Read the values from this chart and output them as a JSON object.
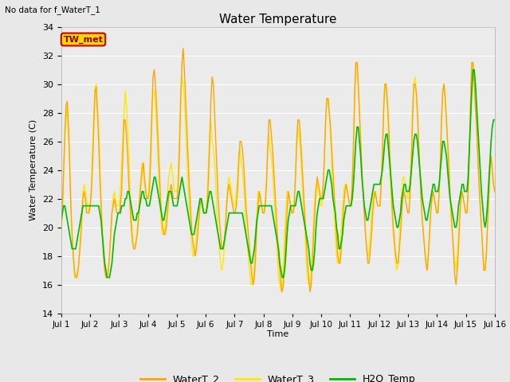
{
  "title": "Water Temperature",
  "xlabel": "Time",
  "ylabel": "Water Temperature (C)",
  "ylim": [
    14,
    34
  ],
  "yticks": [
    14,
    16,
    18,
    20,
    22,
    24,
    26,
    28,
    30,
    32,
    34
  ],
  "bg_color": "#e8e8e8",
  "plot_bg_color": "#ebebeb",
  "annotation_text": "No data for f_WaterT_1",
  "legend_label1": "WaterT_2",
  "legend_label2": "WaterT_3",
  "legend_label3": "H2O_Temp",
  "color_WaterT2": "#FFA500",
  "color_WaterT3": "#FFE800",
  "color_H2O": "#00BB00",
  "tw_met_label": "TW_met",
  "tw_met_bg": "#FFD700",
  "tw_met_border": "#CC0000",
  "WaterT_2": [
    19.8,
    21.5,
    24.0,
    26.5,
    28.5,
    28.8,
    27.0,
    24.5,
    21.5,
    19.5,
    18.0,
    17.0,
    16.5,
    16.5,
    17.0,
    18.0,
    19.0,
    20.5,
    22.0,
    22.5,
    22.0,
    21.0,
    21.0,
    21.0,
    21.5,
    22.5,
    24.5,
    27.0,
    29.5,
    29.8,
    28.0,
    26.0,
    23.5,
    21.5,
    19.5,
    18.0,
    17.0,
    16.5,
    16.5,
    17.0,
    18.0,
    19.5,
    21.0,
    21.5,
    22.0,
    21.5,
    21.0,
    21.0,
    21.0,
    21.5,
    22.5,
    25.0,
    27.5,
    27.5,
    26.5,
    25.0,
    23.0,
    21.5,
    20.0,
    19.0,
    18.5,
    18.5,
    19.0,
    19.5,
    20.5,
    22.0,
    23.0,
    24.0,
    24.5,
    23.5,
    22.5,
    22.0,
    22.0,
    22.5,
    24.5,
    27.5,
    30.5,
    31.0,
    30.0,
    28.5,
    26.5,
    24.5,
    22.5,
    21.0,
    20.0,
    19.5,
    19.5,
    20.0,
    21.0,
    22.0,
    22.5,
    23.0,
    22.5,
    22.0,
    22.0,
    22.0,
    22.0,
    23.0,
    25.5,
    29.0,
    31.5,
    32.5,
    31.0,
    29.0,
    27.0,
    25.0,
    23.0,
    21.5,
    20.0,
    19.0,
    18.5,
    18.0,
    18.5,
    19.5,
    20.5,
    21.5,
    22.0,
    21.5,
    21.0,
    21.0,
    21.0,
    21.5,
    23.5,
    26.0,
    29.0,
    30.5,
    30.0,
    28.0,
    26.0,
    24.0,
    22.0,
    20.5,
    19.5,
    18.5,
    18.5,
    19.0,
    20.0,
    21.5,
    22.5,
    23.0,
    22.5,
    22.0,
    21.5,
    21.0,
    21.0,
    21.5,
    22.5,
    24.5,
    26.0,
    26.0,
    25.5,
    24.5,
    23.0,
    21.5,
    20.5,
    19.5,
    18.5,
    17.5,
    16.5,
    16.0,
    16.5,
    18.0,
    20.0,
    21.5,
    22.5,
    22.0,
    21.5,
    21.0,
    21.0,
    21.5,
    23.0,
    25.5,
    27.5,
    27.5,
    26.5,
    25.5,
    24.0,
    22.5,
    21.0,
    19.5,
    18.0,
    17.0,
    16.0,
    15.5,
    16.0,
    17.5,
    19.5,
    21.0,
    22.5,
    22.0,
    21.5,
    21.0,
    21.0,
    21.5,
    23.5,
    26.0,
    27.5,
    27.5,
    26.5,
    25.0,
    23.5,
    22.0,
    20.5,
    19.0,
    17.5,
    16.5,
    15.5,
    16.0,
    17.5,
    19.5,
    21.0,
    22.5,
    23.5,
    23.0,
    22.5,
    22.0,
    22.0,
    23.0,
    25.0,
    27.5,
    29.0,
    29.0,
    28.0,
    27.0,
    25.5,
    24.0,
    22.5,
    21.0,
    19.5,
    18.0,
    17.5,
    17.5,
    18.5,
    20.0,
    21.5,
    22.5,
    23.0,
    22.5,
    22.0,
    21.5,
    21.5,
    23.0,
    25.5,
    29.0,
    31.5,
    31.5,
    30.0,
    28.0,
    26.0,
    24.0,
    22.5,
    21.0,
    19.5,
    18.5,
    17.5,
    17.5,
    18.5,
    19.5,
    21.0,
    22.0,
    22.5,
    22.0,
    21.5,
    21.5,
    21.5,
    23.0,
    25.0,
    28.0,
    30.0,
    30.0,
    29.0,
    27.5,
    25.5,
    23.5,
    21.5,
    20.0,
    19.0,
    18.0,
    17.5,
    17.5,
    18.5,
    19.5,
    21.0,
    22.0,
    22.5,
    22.0,
    21.5,
    21.0,
    21.0,
    22.5,
    24.5,
    27.5,
    30.0,
    30.0,
    29.5,
    28.0,
    26.0,
    24.0,
    22.0,
    20.5,
    19.5,
    18.5,
    17.5,
    17.0,
    18.0,
    19.5,
    21.0,
    22.0,
    22.5,
    22.0,
    21.5,
    21.0,
    21.0,
    22.5,
    24.5,
    27.5,
    29.5,
    30.0,
    29.0,
    27.5,
    26.0,
    24.5,
    22.5,
    21.0,
    19.5,
    18.0,
    16.5,
    16.0,
    17.0,
    18.5,
    20.5,
    22.0,
    22.5,
    22.0,
    21.5,
    21.0,
    21.0,
    22.5,
    25.0,
    28.5,
    31.5,
    31.5,
    30.0,
    28.5,
    27.0,
    25.0,
    23.0,
    21.5,
    20.0,
    18.5,
    17.0,
    17.0,
    18.0,
    20.0,
    22.0,
    24.0,
    25.0,
    24.0,
    23.0,
    22.5
  ],
  "WaterT_3": [
    19.5,
    21.0,
    23.5,
    26.0,
    27.5,
    28.5,
    27.0,
    24.5,
    21.5,
    19.5,
    18.0,
    16.5,
    16.5,
    16.5,
    17.0,
    18.0,
    19.5,
    21.0,
    22.5,
    23.0,
    22.5,
    22.0,
    21.5,
    21.0,
    21.5,
    23.0,
    25.5,
    28.0,
    29.8,
    30.0,
    28.5,
    27.0,
    24.5,
    22.0,
    20.0,
    18.5,
    17.5,
    17.0,
    16.5,
    17.0,
    18.0,
    19.5,
    21.0,
    22.0,
    22.5,
    22.0,
    21.5,
    21.5,
    21.5,
    22.5,
    24.5,
    26.5,
    28.0,
    29.5,
    28.5,
    27.0,
    25.0,
    22.5,
    21.0,
    19.5,
    18.5,
    18.5,
    19.0,
    20.0,
    21.0,
    22.5,
    23.5,
    24.5,
    24.0,
    23.0,
    22.5,
    22.0,
    22.0,
    23.5,
    25.5,
    28.5,
    29.5,
    29.5,
    28.5,
    27.0,
    25.0,
    23.0,
    21.5,
    20.0,
    19.5,
    19.5,
    20.0,
    21.0,
    22.5,
    23.5,
    24.0,
    24.5,
    24.0,
    23.0,
    22.5,
    22.5,
    22.5,
    24.0,
    26.5,
    29.5,
    30.5,
    30.0,
    29.0,
    27.0,
    25.0,
    23.0,
    21.5,
    20.0,
    19.0,
    18.0,
    18.0,
    18.5,
    19.5,
    20.5,
    21.5,
    22.0,
    22.0,
    21.5,
    21.0,
    21.0,
    21.0,
    22.5,
    24.5,
    26.5,
    27.5,
    26.0,
    25.5,
    24.5,
    23.0,
    21.0,
    19.5,
    18.5,
    17.5,
    17.0,
    17.5,
    18.5,
    20.0,
    22.0,
    23.0,
    23.5,
    23.0,
    22.5,
    22.0,
    21.5,
    21.5,
    22.5,
    23.5,
    25.0,
    25.5,
    24.5,
    24.0,
    23.0,
    21.5,
    20.0,
    19.0,
    18.0,
    17.0,
    16.0,
    16.0,
    16.5,
    17.5,
    19.5,
    21.0,
    22.5,
    22.5,
    22.0,
    21.5,
    21.0,
    21.0,
    22.0,
    23.5,
    25.5,
    26.5,
    25.5,
    25.0,
    24.0,
    22.5,
    21.0,
    19.5,
    18.0,
    16.5,
    16.0,
    15.5,
    16.0,
    17.5,
    19.5,
    21.0,
    22.5,
    22.5,
    22.0,
    21.5,
    21.0,
    21.0,
    22.0,
    23.5,
    25.5,
    27.0,
    26.5,
    25.5,
    24.0,
    22.5,
    21.0,
    19.5,
    17.5,
    16.5,
    16.0,
    16.0,
    17.0,
    18.5,
    20.5,
    22.0,
    23.0,
    23.0,
    22.5,
    22.0,
    21.5,
    21.5,
    23.0,
    25.0,
    27.5,
    29.0,
    29.0,
    28.0,
    26.5,
    24.5,
    22.5,
    21.0,
    19.5,
    18.0,
    17.5,
    17.5,
    18.5,
    20.0,
    21.5,
    22.5,
    23.0,
    23.0,
    22.5,
    22.0,
    21.5,
    21.5,
    23.5,
    26.0,
    29.5,
    31.5,
    31.5,
    30.0,
    28.0,
    26.0,
    24.0,
    22.5,
    21.0,
    19.5,
    18.5,
    18.0,
    18.5,
    19.5,
    21.0,
    22.0,
    22.5,
    22.5,
    22.0,
    21.5,
    21.5,
    21.5,
    23.0,
    25.5,
    28.5,
    30.0,
    30.0,
    28.5,
    26.5,
    24.5,
    22.5,
    21.0,
    19.5,
    18.5,
    17.5,
    17.0,
    17.5,
    19.0,
    21.0,
    22.5,
    23.5,
    23.5,
    23.0,
    22.5,
    22.0,
    22.0,
    23.5,
    25.5,
    28.5,
    30.0,
    30.5,
    29.5,
    28.0,
    26.0,
    24.0,
    22.0,
    20.5,
    19.5,
    18.5,
    17.5,
    17.0,
    18.0,
    19.5,
    21.0,
    22.0,
    22.5,
    22.0,
    21.5,
    21.0,
    21.0,
    22.5,
    25.0,
    28.0,
    29.5,
    30.0,
    29.0,
    27.5,
    25.5,
    23.5,
    22.0,
    20.5,
    19.5,
    18.5,
    17.5,
    17.0,
    18.0,
    19.5,
    21.0,
    22.0,
    22.5,
    22.0,
    21.5,
    21.0,
    21.0,
    22.5,
    25.5,
    29.0,
    31.5,
    31.5,
    30.0,
    28.5,
    27.0,
    25.0,
    23.0,
    21.5,
    20.0,
    18.5,
    17.0,
    17.0,
    18.0,
    20.0,
    22.0,
    24.0,
    25.0,
    24.0,
    23.0,
    22.5
  ],
  "H2O_Temp": [
    20.5,
    21.0,
    21.5,
    21.5,
    21.0,
    20.5,
    20.0,
    19.5,
    19.0,
    18.5,
    18.5,
    18.5,
    18.5,
    19.0,
    19.5,
    20.0,
    20.5,
    21.0,
    21.5,
    21.5,
    21.5,
    21.5,
    21.5,
    21.5,
    21.5,
    21.5,
    21.5,
    21.5,
    21.5,
    21.5,
    21.5,
    21.5,
    21.0,
    20.5,
    19.5,
    18.5,
    17.5,
    17.0,
    16.5,
    16.5,
    16.5,
    17.0,
    17.5,
    18.5,
    19.5,
    20.0,
    20.5,
    21.0,
    21.0,
    21.0,
    21.5,
    21.5,
    21.5,
    22.0,
    22.0,
    22.5,
    22.5,
    22.0,
    21.5,
    21.0,
    20.5,
    20.5,
    20.5,
    21.0,
    21.0,
    21.5,
    22.0,
    22.5,
    22.5,
    22.0,
    22.0,
    21.5,
    21.5,
    21.5,
    22.0,
    22.5,
    23.0,
    23.5,
    23.5,
    23.0,
    22.5,
    22.0,
    21.5,
    21.0,
    20.5,
    20.5,
    21.0,
    21.5,
    22.0,
    22.5,
    22.5,
    22.5,
    22.0,
    21.5,
    21.5,
    21.5,
    21.5,
    22.0,
    22.5,
    23.0,
    23.5,
    23.0,
    22.5,
    22.0,
    21.5,
    21.0,
    20.5,
    20.0,
    19.5,
    19.5,
    19.5,
    20.0,
    20.5,
    21.0,
    21.5,
    22.0,
    22.0,
    21.5,
    21.0,
    21.0,
    21.0,
    21.5,
    22.0,
    22.5,
    22.5,
    22.0,
    21.5,
    21.0,
    20.5,
    20.0,
    19.5,
    19.0,
    18.5,
    18.5,
    18.5,
    19.0,
    19.5,
    20.0,
    20.5,
    21.0,
    21.0,
    21.0,
    21.0,
    21.0,
    21.0,
    21.0,
    21.0,
    21.0,
    21.0,
    21.0,
    21.0,
    20.5,
    20.0,
    19.5,
    19.0,
    18.5,
    18.0,
    17.5,
    17.5,
    18.0,
    18.5,
    19.5,
    20.5,
    21.0,
    21.5,
    21.5,
    21.5,
    21.5,
    21.5,
    21.5,
    21.5,
    21.5,
    21.5,
    21.5,
    21.5,
    21.0,
    20.5,
    20.0,
    19.5,
    19.0,
    18.5,
    17.5,
    17.0,
    16.5,
    16.5,
    17.0,
    18.0,
    19.5,
    20.5,
    21.0,
    21.5,
    21.5,
    21.5,
    21.5,
    21.5,
    22.0,
    22.5,
    22.5,
    22.0,
    21.5,
    21.0,
    20.5,
    20.0,
    19.5,
    19.0,
    18.5,
    17.5,
    17.0,
    17.0,
    17.5,
    18.5,
    20.0,
    21.0,
    21.5,
    22.0,
    22.0,
    22.0,
    22.0,
    22.5,
    23.0,
    23.5,
    24.0,
    24.0,
    23.5,
    23.0,
    22.0,
    21.5,
    21.0,
    20.0,
    19.5,
    18.5,
    18.5,
    19.0,
    19.5,
    20.5,
    21.0,
    21.5,
    21.5,
    21.5,
    21.5,
    21.5,
    22.0,
    23.0,
    24.5,
    26.0,
    27.0,
    27.0,
    26.0,
    25.0,
    23.5,
    22.5,
    21.5,
    21.0,
    20.5,
    20.5,
    21.0,
    21.5,
    22.0,
    22.5,
    23.0,
    23.0,
    23.0,
    23.0,
    23.0,
    23.0,
    23.5,
    24.0,
    25.0,
    26.0,
    26.5,
    26.5,
    25.5,
    24.5,
    23.5,
    22.5,
    21.5,
    21.0,
    20.5,
    20.0,
    20.0,
    20.5,
    21.0,
    22.0,
    22.5,
    23.0,
    23.0,
    22.5,
    22.5,
    22.5,
    23.0,
    24.0,
    25.0,
    26.0,
    26.5,
    26.5,
    26.0,
    25.0,
    24.0,
    23.0,
    22.0,
    21.5,
    21.0,
    20.5,
    20.5,
    21.0,
    21.5,
    22.0,
    22.5,
    23.0,
    23.0,
    22.5,
    22.5,
    22.5,
    23.0,
    24.0,
    25.0,
    26.0,
    26.0,
    25.5,
    25.0,
    24.0,
    23.0,
    22.0,
    21.5,
    21.0,
    20.5,
    20.0,
    20.0,
    20.5,
    21.5,
    22.0,
    22.5,
    23.0,
    23.0,
    22.5,
    22.5,
    22.5,
    23.5,
    25.5,
    27.5,
    29.5,
    31.0,
    31.0,
    30.0,
    28.5,
    27.0,
    25.5,
    24.0,
    22.5,
    21.5,
    20.5,
    20.0,
    20.5,
    21.5,
    23.0,
    24.5,
    26.0,
    27.0,
    27.5,
    27.5
  ]
}
